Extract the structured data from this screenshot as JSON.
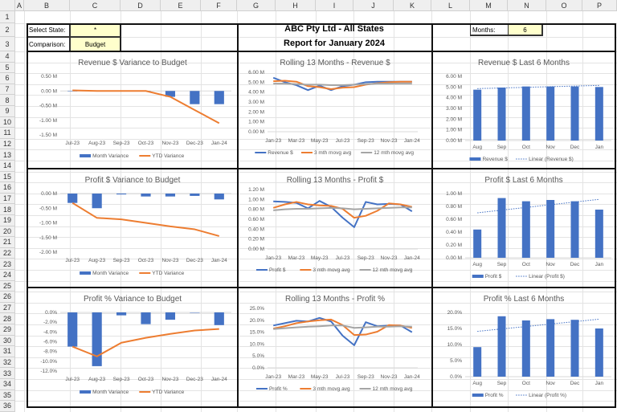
{
  "columns": [
    "A",
    "B",
    "C",
    "D",
    "E",
    "F",
    "G",
    "H",
    "I",
    "J",
    "K",
    "L",
    "M",
    "N",
    "O",
    "P"
  ],
  "rows": [
    "1",
    "2",
    "3",
    "4",
    "5",
    "6",
    "7",
    "8",
    "9",
    "10",
    "11",
    "12",
    "13",
    "14",
    "15",
    "16",
    "17",
    "18",
    "19",
    "20",
    "21",
    "22",
    "23",
    "24",
    "25",
    "26",
    "27",
    "28",
    "29",
    "30",
    "31",
    "32",
    "33",
    "34",
    "35",
    "36"
  ],
  "header": {
    "select_state_label": "Select State:",
    "select_state_value": "*",
    "comparison_label": "Comparison:",
    "comparison_value": "Budget",
    "title_line1": "ABC Pty Ltd - All States",
    "title_line2": "Report for January 2024",
    "months_label": "Months:",
    "months_value": "6"
  },
  "colors": {
    "blue": "#4472C4",
    "orange": "#ED7D31",
    "gray": "#A5A5A5"
  },
  "charts": [
    {
      "type": "combo",
      "title": "Revenue $ Variance to Budget",
      "categories": [
        "Jul-23",
        "Aug-23",
        "Sep-23",
        "Oct-23",
        "Nov-23",
        "Dec-23",
        "Jan-24"
      ],
      "yticks": [
        0.5,
        0,
        -0.5,
        -1,
        -1.5
      ],
      "ytick_labels": [
        "0.50 M",
        "0.00 M",
        "-0.50 M",
        "-1.00 M",
        "-1.50 M"
      ],
      "ylim": [
        -1.5,
        0.5
      ],
      "bars": {
        "name": "Month Variance",
        "values": [
          0,
          0,
          0,
          0,
          -0.2,
          -0.45,
          -0.45
        ]
      },
      "lines": [
        {
          "name": "YTD Variance",
          "color": "orange",
          "values": [
            0.02,
            0,
            0,
            0,
            -0.2,
            -0.65,
            -1.1
          ]
        }
      ]
    },
    {
      "type": "line",
      "title": "Rolling 13 Months - Revenue $",
      "categories": [
        "Jan-23",
        "Feb-23",
        "Mar-23",
        "Apr-23",
        "May-23",
        "Jun-23",
        "Jul-23",
        "Aug-23",
        "Sep-23",
        "Oct-23",
        "Nov-23",
        "Dec-23",
        "Jan-24"
      ],
      "yticks": [
        6,
        5,
        4,
        3,
        2,
        1,
        0
      ],
      "ytick_labels": [
        "6.00 M",
        "5.00 M",
        "4.00 M",
        "3.00 M",
        "2.00 M",
        "1.00 M",
        "0.00 M"
      ],
      "ylim": [
        0,
        6
      ],
      "lines": [
        {
          "name": "Revenue $",
          "color": "blue",
          "values": [
            5.45,
            5.0,
            4.7,
            4.2,
            4.65,
            4.2,
            4.6,
            4.75,
            5.0,
            5.05,
            5.05,
            5.05,
            5.05
          ]
        },
        {
          "name": "3 mth movg avg",
          "color": "orange",
          "values": [
            5.1,
            5.15,
            5.05,
            4.6,
            4.5,
            4.3,
            4.45,
            4.5,
            4.75,
            4.9,
            5.0,
            5.05,
            5.05
          ]
        },
        {
          "name": "12 mth movg avg",
          "color": "gray",
          "values": [
            4.85,
            4.85,
            4.8,
            4.75,
            4.75,
            4.7,
            4.7,
            4.75,
            4.8,
            4.85,
            4.85,
            4.85,
            4.85
          ]
        }
      ]
    },
    {
      "type": "trend",
      "title": "Revenue $ Last 6 Months",
      "categories": [
        "Aug",
        "Sep",
        "Oct",
        "Nov",
        "Dec",
        "Jan"
      ],
      "yticks": [
        6,
        5,
        4,
        3,
        2,
        1,
        0
      ],
      "ytick_labels": [
        "6.00 M",
        "5.00 M",
        "4.00 M",
        "3.00 M",
        "2.00 M",
        "1.00 M",
        "0.00 M"
      ],
      "ylim": [
        0,
        6
      ],
      "bars": {
        "name": "Revenue $",
        "values": [
          4.75,
          4.95,
          5.05,
          5.05,
          5.05,
          5.0
        ]
      },
      "trend": {
        "name": "Linear (Revenue $)",
        "start": 4.85,
        "end": 5.15
      }
    },
    {
      "type": "combo",
      "title": "Profit $ Variance to Budget",
      "categories": [
        "Jul-23",
        "Aug-23",
        "Sep-23",
        "Oct-23",
        "Nov-23",
        "Dec-23",
        "Jan-24"
      ],
      "yticks": [
        0,
        -0.5,
        -1,
        -1.5,
        -2
      ],
      "ytick_labels": [
        "0.00 M",
        "-0.50 M",
        "-1.00 M",
        "-1.50 M",
        "-2.00 M"
      ],
      "ylim": [
        -2,
        0
      ],
      "bars": {
        "name": "Month Variance",
        "values": [
          -0.32,
          -0.5,
          -0.03,
          -0.1,
          -0.1,
          -0.08,
          -0.2
        ]
      },
      "lines": [
        {
          "name": "YTD Variance",
          "color": "orange",
          "values": [
            -0.32,
            -0.83,
            -0.88,
            -1.0,
            -1.12,
            -1.22,
            -1.45
          ]
        }
      ]
    },
    {
      "type": "line",
      "title": "Rolling 13 Months - Profit $",
      "categories": [
        "Jan-23",
        "Feb-23",
        "Mar-23",
        "Apr-23",
        "May-23",
        "Jun-23",
        "Jul-23",
        "Aug-23",
        "Sep-23",
        "Oct-23",
        "Nov-23",
        "Dec-23",
        "Jan-24"
      ],
      "yticks": [
        1.2,
        1,
        0.8,
        0.6,
        0.4,
        0.2,
        0
      ],
      "ytick_labels": [
        "1.20 M",
        "1.00 M",
        "0.80 M",
        "0.60 M",
        "0.40 M",
        "0.20 M",
        "0.00 M"
      ],
      "ylim": [
        0,
        1.2
      ],
      "lines": [
        {
          "name": "Profit $",
          "color": "blue",
          "values": [
            0.96,
            0.95,
            0.93,
            0.82,
            0.97,
            0.85,
            0.63,
            0.44,
            0.95,
            0.9,
            0.91,
            0.9,
            0.76
          ]
        },
        {
          "name": "3 mth movg avg",
          "color": "orange",
          "values": [
            0.83,
            0.9,
            0.95,
            0.9,
            0.88,
            0.87,
            0.81,
            0.63,
            0.67,
            0.77,
            0.92,
            0.9,
            0.85
          ]
        },
        {
          "name": "12 mth movg avg",
          "color": "gray",
          "values": [
            0.78,
            0.8,
            0.81,
            0.81,
            0.82,
            0.83,
            0.82,
            0.8,
            0.81,
            0.82,
            0.83,
            0.84,
            0.84
          ]
        }
      ]
    },
    {
      "type": "trend",
      "title": "Profit $ Last 6 Months",
      "categories": [
        "Aug",
        "Sep",
        "Oct",
        "Nov",
        "Dec",
        "Jan"
      ],
      "yticks": [
        1,
        0.8,
        0.6,
        0.4,
        0.2,
        0
      ],
      "ytick_labels": [
        "1.00 M",
        "0.80 M",
        "0.60 M",
        "0.40 M",
        "0.20 M",
        "0.00 M"
      ],
      "ylim": [
        0,
        1
      ],
      "bars": {
        "name": "Profit $",
        "values": [
          0.44,
          0.93,
          0.88,
          0.9,
          0.88,
          0.75
        ]
      },
      "trend": {
        "name": "Linear (Profit $)",
        "start": 0.7,
        "end": 0.91
      }
    },
    {
      "type": "combo",
      "title": "Profit % Variance to Budget",
      "categories": [
        "Jul-23",
        "Aug-23",
        "Sep-23",
        "Oct-23",
        "Nov-23",
        "Dec-23",
        "Jan-24"
      ],
      "yticks": [
        0,
        -2,
        -4,
        -6,
        -8,
        -10,
        -12
      ],
      "ytick_labels": [
        "0.0%",
        "-2.0%",
        "-4.0%",
        "-6.0%",
        "-8.0%",
        "-10.0%",
        "-12.0%"
      ],
      "ylim": [
        -12,
        0
      ],
      "bars": {
        "name": "Month Variance",
        "values": [
          -7.0,
          -11.0,
          -0.6,
          -2.4,
          -1.5,
          0,
          -2.6
        ]
      },
      "lines": [
        {
          "name": "YTD Variance",
          "color": "orange",
          "values": [
            -7.0,
            -9.0,
            -6.2,
            -5.2,
            -4.4,
            -3.7,
            -3.4
          ]
        }
      ]
    },
    {
      "type": "line",
      "title": "Rolling 13 Months - Profit %",
      "categories": [
        "Jan-23",
        "Feb-23",
        "Mar-23",
        "Apr-23",
        "May-23",
        "Jun-23",
        "Jul-23",
        "Aug-23",
        "Sep-23",
        "Oct-23",
        "Nov-23",
        "Dec-23",
        "Jan-24"
      ],
      "yticks": [
        25,
        20,
        15,
        10,
        5,
        0
      ],
      "ytick_labels": [
        "25.0%",
        "20.0%",
        "15.0%",
        "10.0%",
        "5.0%",
        "0.0%"
      ],
      "ylim": [
        0,
        25
      ],
      "lines": [
        {
          "name": "Profit %",
          "color": "blue",
          "values": [
            17.8,
            18.8,
            19.8,
            19.5,
            21.0,
            19.5,
            13.5,
            9.5,
            19.2,
            17.5,
            17.8,
            17.8,
            15.0
          ]
        },
        {
          "name": "3 mth movg avg",
          "color": "orange",
          "values": [
            16.5,
            17.5,
            18.8,
            19.5,
            20.0,
            20.3,
            18.0,
            13.8,
            14.0,
            15.2,
            18.0,
            17.8,
            16.8
          ]
        },
        {
          "name": "12 mth movg avg",
          "color": "gray",
          "values": [
            16.3,
            16.7,
            17.0,
            17.3,
            17.5,
            17.8,
            17.8,
            16.8,
            17.0,
            17.3,
            17.3,
            17.5,
            17.3
          ]
        }
      ]
    },
    {
      "type": "trend",
      "title": "Profit % Last 6 Months",
      "categories": [
        "Aug",
        "Sep",
        "Oct",
        "Nov",
        "Dec",
        "Jan"
      ],
      "yticks": [
        20,
        15,
        10,
        5,
        0
      ],
      "ytick_labels": [
        "20.0%",
        "15.0%",
        "10.0%",
        "5.0%",
        "0.0%"
      ],
      "ylim": [
        0,
        20
      ],
      "bars": {
        "name": "Profit %",
        "values": [
          9.2,
          18.8,
          17.5,
          17.9,
          17.7,
          15.0
        ]
      },
      "trend": {
        "name": "Linear (Profit %)",
        "start": 14.1,
        "end": 17.9
      }
    }
  ]
}
